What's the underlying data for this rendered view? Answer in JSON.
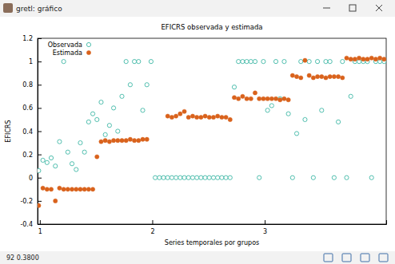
{
  "window": {
    "title": "gretl: gráfico",
    "status": "92 0.3800"
  },
  "chart_data": {
    "type": "scatter",
    "title": "EFICRS observada y estimada",
    "x_label": "Series temporales por grupos",
    "y_label": "EFICRS",
    "xlim": [
      0.98,
      4.08
    ],
    "xticks": [
      1,
      2,
      3
    ],
    "ylim": [
      -0.4,
      1.2
    ],
    "yticks": [
      -0.4,
      -0.2,
      0,
      0.2,
      0.4,
      0.6,
      0.8,
      1,
      1.2
    ],
    "legend": "upper left",
    "x": [
      0.99,
      1.027,
      1.064,
      1.101,
      1.138,
      1.175,
      1.212,
      1.249,
      1.286,
      1.323,
      1.36,
      1.397,
      1.434,
      1.471,
      1.508,
      1.545,
      1.582,
      1.619,
      1.656,
      1.693,
      1.73,
      1.767,
      1.804,
      1.841,
      1.878,
      1.915,
      1.952,
      1.989,
      2.026,
      2.063,
      2.1,
      2.137,
      2.174,
      2.211,
      2.248,
      2.285,
      2.322,
      2.359,
      2.396,
      2.433,
      2.47,
      2.507,
      2.544,
      2.581,
      2.618,
      2.655,
      2.692,
      2.729,
      2.766,
      2.803,
      2.84,
      2.877,
      2.914,
      2.951,
      2.988,
      3.025,
      3.062,
      3.099,
      3.136,
      3.173,
      3.21,
      3.247,
      3.284,
      3.321,
      3.358,
      3.395,
      3.432,
      3.469,
      3.506,
      3.543,
      3.58,
      3.617,
      3.654,
      3.691,
      3.728,
      3.765,
      3.802,
      3.839,
      3.876,
      3.913,
      3.95,
      3.987,
      4.024,
      4.061
    ],
    "series": [
      {
        "name": "Observada",
        "color": "#3fb8a6",
        "marker": "circle-open",
        "values": [
          0.06,
          0.15,
          0.13,
          0.17,
          0.1,
          0.31,
          1,
          0.22,
          0.12,
          0.07,
          0.3,
          0.22,
          0.48,
          0.55,
          0.5,
          0.65,
          0.37,
          0.45,
          0.6,
          0.4,
          0.7,
          1,
          0.8,
          1,
          1,
          0.58,
          0.8,
          1,
          0,
          0,
          0,
          0,
          0,
          0,
          0,
          0,
          0,
          0,
          0,
          0,
          0,
          0,
          0,
          0,
          0,
          0,
          0,
          0.78,
          1,
          1,
          1,
          1,
          1,
          0,
          1,
          0.58,
          0.62,
          1,
          0.68,
          1,
          0.55,
          0,
          0.38,
          1,
          0.5,
          1,
          0,
          1,
          0.58,
          1,
          1,
          0,
          0.48,
          1,
          0,
          0.7,
          1,
          1,
          1,
          1,
          0,
          1,
          1,
          1
        ]
      },
      {
        "name": "Estimada",
        "color": "#d9621c",
        "marker": "circle",
        "values": [
          -0.24,
          -0.09,
          -0.1,
          -0.1,
          -0.2,
          -0.09,
          -0.1,
          -0.1,
          -0.1,
          -0.1,
          -0.1,
          -0.1,
          -0.1,
          -0.1,
          0.18,
          0.31,
          0.32,
          0.31,
          0.32,
          0.32,
          0.32,
          0.32,
          0.33,
          0.32,
          0.32,
          0.33,
          0.33,
          null,
          null,
          null,
          null,
          0.53,
          0.52,
          0.53,
          0.55,
          0.57,
          0.52,
          0.53,
          0.52,
          0.52,
          0.53,
          0.52,
          0.52,
          0.53,
          0.52,
          0.52,
          0.5,
          0.69,
          0.68,
          0.7,
          0.68,
          0.68,
          0.73,
          0.68,
          0.68,
          0.68,
          0.68,
          0.68,
          0.67,
          0.68,
          0.67,
          0.88,
          0.87,
          0.86,
          1.01,
          0.88,
          0.86,
          0.87,
          0.87,
          0.86,
          0.87,
          0.87,
          0.87,
          0.86,
          1.03,
          1.02,
          1.02,
          1.03,
          1.02,
          1.02,
          1.03,
          1.02,
          1.03,
          1.02
        ]
      }
    ]
  }
}
